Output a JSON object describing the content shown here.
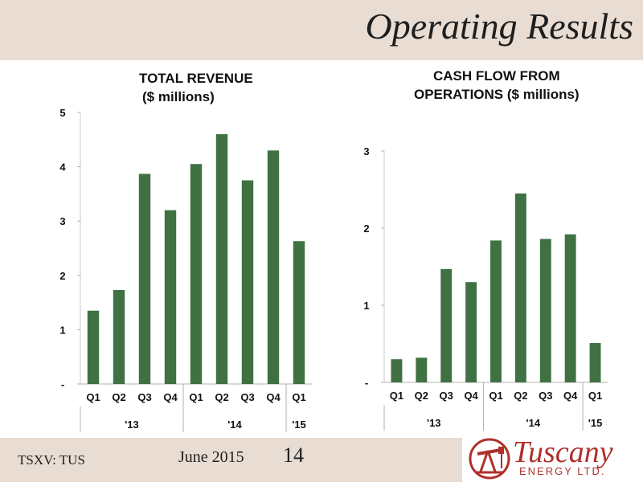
{
  "page": {
    "title": "Operating Results",
    "footer_ticker": "TSXV: TUS",
    "footer_date": "June 2015",
    "page_number": "14",
    "logo": {
      "name": "Tuscany",
      "subtitle": "ENERGY LTD."
    }
  },
  "colors": {
    "bar": "#3f7142",
    "band": "#e8dcd3",
    "logo": "#b0302a"
  },
  "chart_data": [
    {
      "type": "bar",
      "title_lines": [
        "TOTAL REVENUE",
        "($ millions)"
      ],
      "categories": [
        "Q1",
        "Q2",
        "Q3",
        "Q4",
        "Q1",
        "Q2",
        "Q3",
        "Q4",
        "Q1"
      ],
      "groups": [
        {
          "label": "'13",
          "count": 4
        },
        {
          "label": "'14",
          "count": 4
        },
        {
          "label": "'15",
          "count": 1
        }
      ],
      "values": [
        1.35,
        1.73,
        3.87,
        3.2,
        4.05,
        4.6,
        3.75,
        4.3,
        2.63
      ],
      "ylim": [
        0,
        5
      ],
      "yticks": [
        0,
        1,
        2,
        3,
        4,
        5
      ],
      "ytick_labels": [
        "-",
        "1",
        "2",
        "3",
        "4",
        "5"
      ]
    },
    {
      "type": "bar",
      "title_lines": [
        "CASH FLOW FROM",
        "OPERATIONS ($ millions)"
      ],
      "categories": [
        "Q1",
        "Q2",
        "Q3",
        "Q4",
        "Q1",
        "Q2",
        "Q3",
        "Q4",
        "Q1"
      ],
      "groups": [
        {
          "label": "'13",
          "count": 4
        },
        {
          "label": "'14",
          "count": 4
        },
        {
          "label": "'15",
          "count": 1
        }
      ],
      "values": [
        0.3,
        0.32,
        1.47,
        1.3,
        1.84,
        2.45,
        1.86,
        1.92,
        0.51
      ],
      "ylim": [
        0,
        3
      ],
      "yticks": [
        0,
        1,
        2,
        3
      ],
      "ytick_labels": [
        "-",
        "1",
        "2",
        "3"
      ]
    }
  ]
}
